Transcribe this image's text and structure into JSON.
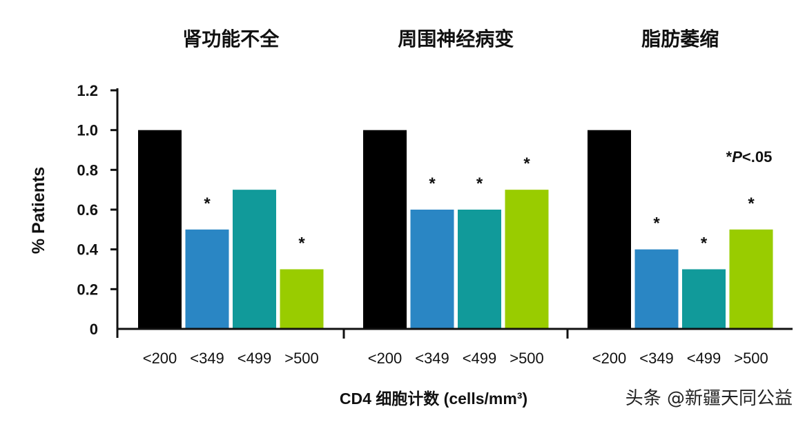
{
  "chart_data": {
    "type": "bar",
    "ylabel": "% Patients",
    "xlabel": "CD4 细胞计数 (cells/mm³)",
    "ylim": [
      0,
      1.2
    ],
    "yticks": [
      "0",
      "0.2",
      "0.4",
      "0.6",
      "0.8",
      "1.0",
      "1.2"
    ],
    "categories": [
      "<200",
      "<349",
      "<499",
      ">500"
    ],
    "colors": [
      "#000000",
      "#2a86c4",
      "#119a9a",
      "#99cc00"
    ],
    "grid": false,
    "annotation": {
      "star": "*",
      "p": "P",
      "rest": "<.05"
    },
    "panels": [
      {
        "title": "肾功能不全",
        "values": [
          1.0,
          0.5,
          0.7,
          0.3
        ],
        "significant": [
          false,
          true,
          false,
          true
        ]
      },
      {
        "title": "周围神经病变",
        "values": [
          1.0,
          0.6,
          0.6,
          0.7
        ],
        "significant": [
          false,
          true,
          true,
          true
        ]
      },
      {
        "title": "脂肪萎缩",
        "values": [
          1.0,
          0.4,
          0.3,
          0.5
        ],
        "significant": [
          false,
          true,
          true,
          true
        ]
      }
    ]
  },
  "watermark": "头条 @新疆天同公益"
}
